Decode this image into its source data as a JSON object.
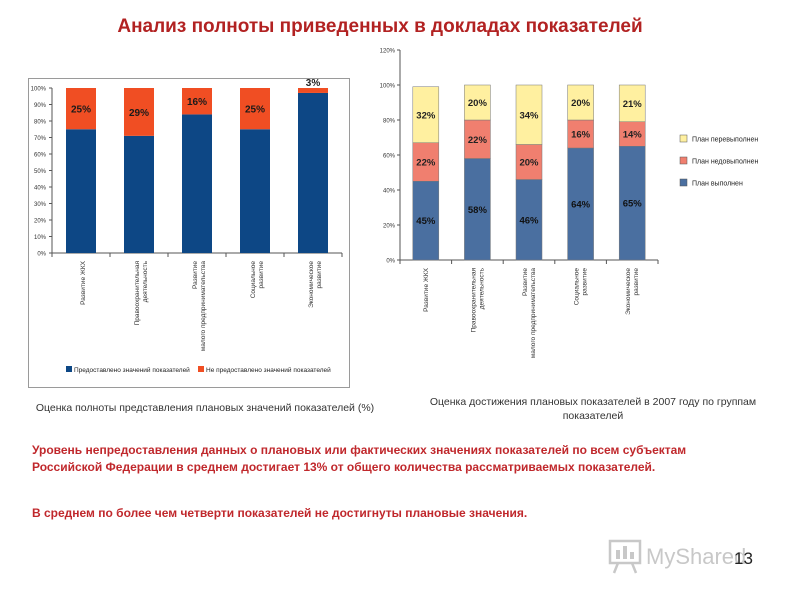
{
  "title": "Анализ полноты приведенных в докладах показателей",
  "chart_data": [
    {
      "type": "bar",
      "stacked": true,
      "categories": [
        "Развитие ЖКХ",
        "Правоохранительная деятельность",
        "Развитие малого предпринимательства",
        "Социальное развитие",
        "Экономическое развитие"
      ],
      "series": [
        {
          "name": "Предоставлено значений показателей",
          "values": [
            75,
            71,
            84,
            75,
            97
          ],
          "color": "#0d4785"
        },
        {
          "name": "Не предоставлено значений показателей",
          "values": [
            25,
            29,
            16,
            25,
            3
          ],
          "color": "#f04e23"
        }
      ],
      "labels": [
        "25%",
        "29%",
        "16%",
        "25%",
        "3%"
      ],
      "yticks": [
        "0%",
        "10%",
        "20%",
        "30%",
        "40%",
        "50%",
        "60%",
        "70%",
        "80%",
        "90%",
        "100%"
      ],
      "ylim": [
        0,
        100
      ],
      "legend": "bottom",
      "caption": "Оценка полноты представления плановых значений показателей (%)"
    },
    {
      "type": "bar",
      "stacked": true,
      "categories": [
        "Развитие ЖКХ",
        "Правоохранительная деятельность",
        "Развитие малого предпринимательства",
        "Социальное развитие",
        "Экономическое развитие"
      ],
      "series": [
        {
          "name": "План выполнен",
          "values": [
            45,
            58,
            46,
            64,
            65
          ],
          "color": "#4a6fa0",
          "labels": [
            "45%",
            "58%",
            "46%",
            "64%",
            "65%"
          ]
        },
        {
          "name": "План недовыполнен",
          "values": [
            22,
            22,
            20,
            16,
            14
          ],
          "color": "#f07f6f",
          "labels": [
            "22%",
            "22%",
            "20%",
            "16%",
            "14%"
          ]
        },
        {
          "name": "План перевыполнен",
          "values": [
            32,
            20,
            34,
            20,
            21
          ],
          "color": "#fff0a0",
          "labels": [
            "32%",
            "20%",
            "34%",
            "20%",
            "21%"
          ]
        }
      ],
      "yticks": [
        "0%",
        "20%",
        "40%",
        "60%",
        "80%",
        "100%",
        "120%"
      ],
      "ylim": [
        0,
        120
      ],
      "legend": "right",
      "caption": "Оценка достижения плановых показателей в 2007 году по группам показателей"
    }
  ],
  "note1": "Уровень непредоставления данных о плановых или фактических значениях показателей по всем субъектам Российской Федерации в среднем достигает 13% от общего количества рассматриваемых показателей.",
  "note2": "В среднем по более чем четверти показателей не достигнуты плановые значения.",
  "logo_text": "MyShared",
  "slide_number": "13"
}
